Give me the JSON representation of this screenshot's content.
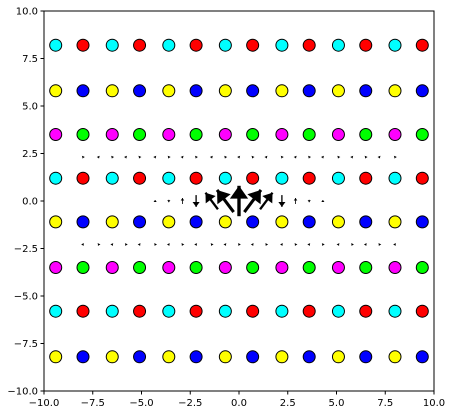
{
  "chart_data": {
    "type": "scatter",
    "title": "",
    "xlabel": "",
    "ylabel": "",
    "xlim": [
      -10,
      10
    ],
    "ylim": [
      -10,
      10
    ],
    "grid": false,
    "x_ticks": [
      -10.0,
      -7.5,
      -5.0,
      -2.5,
      0.0,
      2.5,
      5.0,
      7.5,
      10.0
    ],
    "x_tick_labels": [
      "−10.0",
      "−7.5",
      "−5.0",
      "−2.5",
      "0.0",
      "2.5",
      "5.0",
      "7.5",
      "10.0"
    ],
    "y_ticks": [
      -10.0,
      -7.5,
      -5.0,
      -2.5,
      0.0,
      2.5,
      5.0,
      7.5,
      10.0
    ],
    "y_tick_labels": [
      "−10.0",
      "−7.5",
      "−5.0",
      "−2.5",
      "0.0",
      "2.5",
      "5.0",
      "7.5",
      "10.0"
    ],
    "marker_columns_x": [
      -9.4,
      -8.0,
      -6.5,
      -5.1,
      -3.6,
      -2.2,
      -0.7,
      0.7,
      2.2,
      3.6,
      5.1,
      6.5,
      8.0,
      9.4
    ],
    "marker_rows": [
      {
        "y": 8.2,
        "colors": [
          "#00ffff",
          "#ff0000"
        ]
      },
      {
        "y": 5.8,
        "colors": [
          "#ffff00",
          "#0000ff"
        ]
      },
      {
        "y": 3.5,
        "colors": [
          "#ff00ff",
          "#00ff00"
        ]
      },
      {
        "y": 1.2,
        "colors": [
          "#00ffff",
          "#ff0000"
        ]
      },
      {
        "y": -1.1,
        "colors": [
          "#ffff00",
          "#0000ff"
        ]
      },
      {
        "y": -3.5,
        "colors": [
          "#ff00ff",
          "#00ff00"
        ]
      },
      {
        "y": -5.8,
        "colors": [
          "#00ffff",
          "#ff0000"
        ]
      },
      {
        "y": -8.2,
        "colors": [
          "#ffff00",
          "#0000ff"
        ]
      }
    ],
    "marker_edge_color": "#000000",
    "quiver": {
      "color": "#000000",
      "x": [
        -9.4,
        -8.7,
        -8.0,
        -7.2,
        -6.5,
        -5.8,
        -5.1,
        -4.3,
        -3.6,
        -2.9,
        -2.2,
        -1.4,
        -0.7,
        0.0,
        0.7,
        1.4,
        2.2,
        2.9,
        3.6,
        4.3,
        5.1,
        5.8,
        6.5,
        7.2,
        8.0,
        8.7,
        9.4
      ],
      "rows": [
        {
          "y": 2.3,
          "amplitude": 0.05,
          "sigma": 4.0,
          "pattern": "down",
          "threshold": 0.006
        },
        {
          "y": 0.0,
          "amplitude": 0.9,
          "sigma": 1.6,
          "pattern": "alternate",
          "threshold": 0.01
        },
        {
          "y": -2.3,
          "amplitude": 0.05,
          "sigma": 4.0,
          "pattern": "tilt",
          "threshold": 0.006
        }
      ]
    }
  }
}
